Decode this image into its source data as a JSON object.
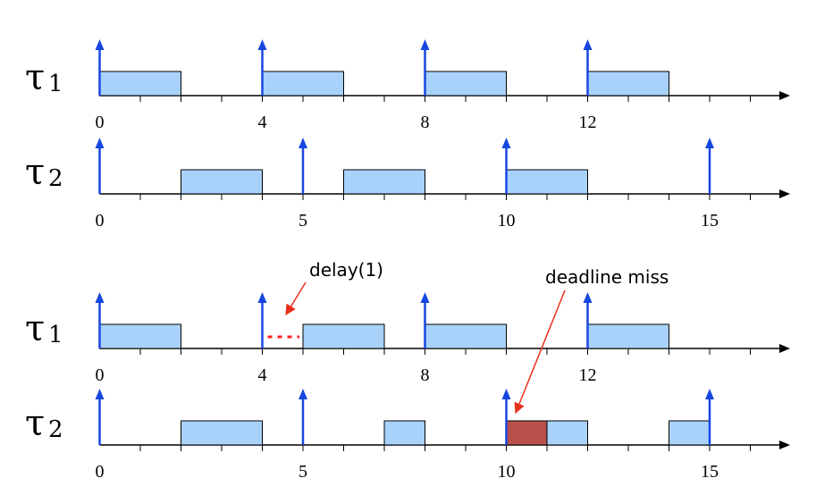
{
  "timelines": [
    {
      "task_symbol": "τ",
      "task_index": "1",
      "tick_labels": [
        {
          "t": 0,
          "text": "0"
        },
        {
          "t": 4,
          "text": "4"
        },
        {
          "t": 8,
          "text": "8"
        },
        {
          "t": 12,
          "text": "12"
        }
      ],
      "arrivals": [
        0,
        4,
        8,
        12
      ],
      "jobs": [
        {
          "start": 0,
          "end": 2
        },
        {
          "start": 4,
          "end": 6
        },
        {
          "start": 8,
          "end": 10
        },
        {
          "start": 12,
          "end": 14
        }
      ],
      "delays": [],
      "misses": []
    },
    {
      "task_symbol": "τ",
      "task_index": "2",
      "tick_labels": [
        {
          "t": 0,
          "text": "0"
        },
        {
          "t": 5,
          "text": "5"
        },
        {
          "t": 10,
          "text": "10"
        },
        {
          "t": 15,
          "text": "15"
        }
      ],
      "arrivals": [
        0,
        5,
        10,
        15
      ],
      "jobs": [
        {
          "start": 2,
          "end": 4
        },
        {
          "start": 6,
          "end": 8
        },
        {
          "start": 10,
          "end": 12
        }
      ],
      "delays": [],
      "misses": []
    },
    {
      "task_symbol": "τ",
      "task_index": "1",
      "tick_labels": [
        {
          "t": 0,
          "text": "0"
        },
        {
          "t": 4,
          "text": "4"
        },
        {
          "t": 8,
          "text": "8"
        },
        {
          "t": 12,
          "text": "12"
        }
      ],
      "arrivals": [
        0,
        4,
        8,
        12
      ],
      "jobs": [
        {
          "start": 0,
          "end": 2
        },
        {
          "start": 5,
          "end": 7
        },
        {
          "start": 8,
          "end": 10
        },
        {
          "start": 12,
          "end": 14
        }
      ],
      "delays": [
        {
          "start": 4,
          "end": 5
        }
      ],
      "misses": []
    },
    {
      "task_symbol": "τ",
      "task_index": "2",
      "tick_labels": [
        {
          "t": 0,
          "text": "0"
        },
        {
          "t": 5,
          "text": "5"
        },
        {
          "t": 10,
          "text": "10"
        },
        {
          "t": 15,
          "text": "15"
        }
      ],
      "arrivals": [
        0,
        5,
        10,
        15
      ],
      "jobs": [
        {
          "start": 2,
          "end": 4
        },
        {
          "start": 7,
          "end": 8
        },
        {
          "start": 11,
          "end": 12
        },
        {
          "start": 14,
          "end": 15
        }
      ],
      "delays": [],
      "misses": [
        {
          "start": 10,
          "end": 11
        }
      ]
    }
  ],
  "annotations": {
    "delay_label": "delay(1)",
    "deadline_label": "deadline miss"
  },
  "colors": {
    "job_fill": "#a9d2fb",
    "job_stroke": "#000000",
    "miss_fill": "#b8504c",
    "arrow": "#1747e0",
    "annotation_arrow": "#e8301c",
    "delay_dots": "#ff2020"
  }
}
